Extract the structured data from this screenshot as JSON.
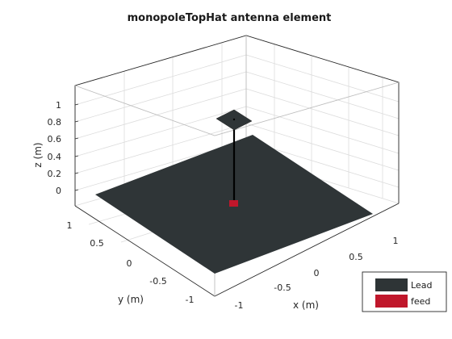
{
  "title": "monopoleTopHat antenna element",
  "axes": {
    "x_label": "x (m)",
    "y_label": "y (m)",
    "z_label": "z (m)",
    "x_ticks": [
      "-1",
      "-0.5",
      "0",
      "0.5",
      "1"
    ],
    "y_ticks": [
      "1",
      "0.5",
      "0",
      "-0.5",
      "-1"
    ],
    "z_ticks": [
      "1",
      "0.8",
      "0.6",
      "0.4",
      "0.2",
      "0"
    ],
    "grid": true,
    "box": true
  },
  "legend": {
    "placement": "bottom-right",
    "items": [
      {
        "label": "Lead",
        "color": "#2e3436"
      },
      {
        "label": "feed",
        "color": "#c0172b"
      }
    ]
  },
  "colors": {
    "ground_plane": "#2f3537",
    "top_hat": "#2f3537",
    "monopole": "#000000",
    "feed": "#c0172b",
    "grid": "#dcdcdc",
    "axis": "#262626"
  }
}
